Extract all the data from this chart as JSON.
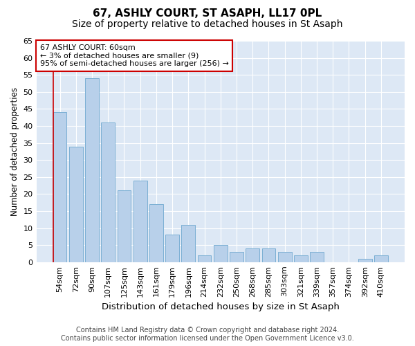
{
  "title1": "67, ASHLY COURT, ST ASAPH, LL17 0PL",
  "title2": "Size of property relative to detached houses in St Asaph",
  "xlabel": "Distribution of detached houses by size in St Asaph",
  "ylabel": "Number of detached properties",
  "categories": [
    "54sqm",
    "72sqm",
    "90sqm",
    "107sqm",
    "125sqm",
    "143sqm",
    "161sqm",
    "179sqm",
    "196sqm",
    "214sqm",
    "232sqm",
    "250sqm",
    "268sqm",
    "285sqm",
    "303sqm",
    "321sqm",
    "339sqm",
    "357sqm",
    "374sqm",
    "392sqm",
    "410sqm"
  ],
  "values": [
    44,
    34,
    54,
    41,
    21,
    24,
    17,
    8,
    11,
    2,
    5,
    3,
    4,
    4,
    3,
    2,
    3,
    0,
    0,
    1,
    2
  ],
  "bar_color": "#b8d0ea",
  "bar_edge_color": "#7bafd4",
  "highlight_line_color": "#cc0000",
  "annotation_line1": "67 ASHLY COURT: 60sqm",
  "annotation_line2": "← 3% of detached houses are smaller (9)",
  "annotation_line3": "95% of semi-detached houses are larger (256) →",
  "annotation_box_color": "#ffffff",
  "annotation_box_edge_color": "#cc0000",
  "ylim": [
    0,
    65
  ],
  "yticks": [
    0,
    5,
    10,
    15,
    20,
    25,
    30,
    35,
    40,
    45,
    50,
    55,
    60,
    65
  ],
  "background_color": "#dde8f5",
  "grid_color": "#ffffff",
  "footer_line1": "Contains HM Land Registry data © Crown copyright and database right 2024.",
  "footer_line2": "Contains public sector information licensed under the Open Government Licence v3.0.",
  "title1_fontsize": 11,
  "title2_fontsize": 10,
  "xlabel_fontsize": 9.5,
  "ylabel_fontsize": 8.5,
  "tick_fontsize": 8,
  "annotation_fontsize": 8,
  "footer_fontsize": 7
}
